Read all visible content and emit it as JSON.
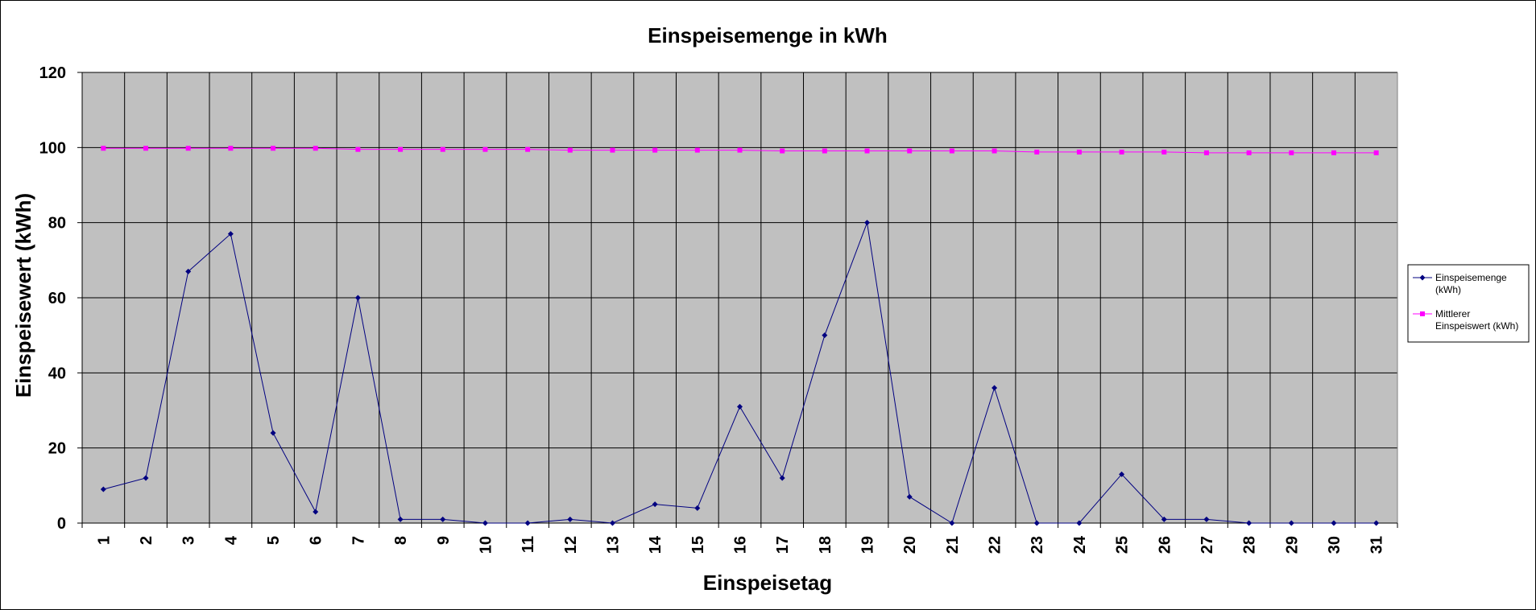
{
  "chart_data": {
    "type": "line",
    "title": "Einspeisemenge in kWh",
    "xlabel": "Einspeisetag",
    "ylabel": "Einspeisewert  (kWh)",
    "categories": [
      "1",
      "2",
      "3",
      "4",
      "5",
      "6",
      "7",
      "8",
      "9",
      "10",
      "11",
      "12",
      "13",
      "14",
      "15",
      "16",
      "17",
      "18",
      "19",
      "20",
      "21",
      "22",
      "23",
      "24",
      "25",
      "26",
      "27",
      "28",
      "29",
      "30",
      "31"
    ],
    "ylim": [
      0,
      120
    ],
    "yticks": [
      0,
      20,
      40,
      60,
      80,
      100,
      120
    ],
    "grid": true,
    "legend_position": "right",
    "series": [
      {
        "name_lines": [
          "Einspeisemenge",
          "(kWh)"
        ],
        "color": "#000080",
        "marker": "diamond",
        "values": [
          9,
          12,
          67,
          77,
          24,
          3,
          60,
          1,
          1,
          0,
          0,
          1,
          0,
          5,
          4,
          31,
          12,
          50,
          80,
          7,
          0,
          36,
          0,
          0,
          13,
          1,
          1,
          0,
          0,
          0,
          0
        ]
      },
      {
        "name_lines": [
          "Mittlerer",
          "Einspeiswert (kWh)"
        ],
        "color": "#FF00FF",
        "marker": "square",
        "values": [
          99.8,
          99.8,
          99.8,
          99.8,
          99.8,
          99.8,
          99.5,
          99.5,
          99.5,
          99.5,
          99.5,
          99.3,
          99.3,
          99.3,
          99.3,
          99.3,
          99.1,
          99.1,
          99.1,
          99.1,
          99.1,
          99.1,
          98.8,
          98.8,
          98.8,
          98.8,
          98.6,
          98.6,
          98.6,
          98.6,
          98.6
        ]
      }
    ],
    "colors": {
      "plot_background": "#C0C0C0",
      "gridline": "#000000"
    }
  }
}
